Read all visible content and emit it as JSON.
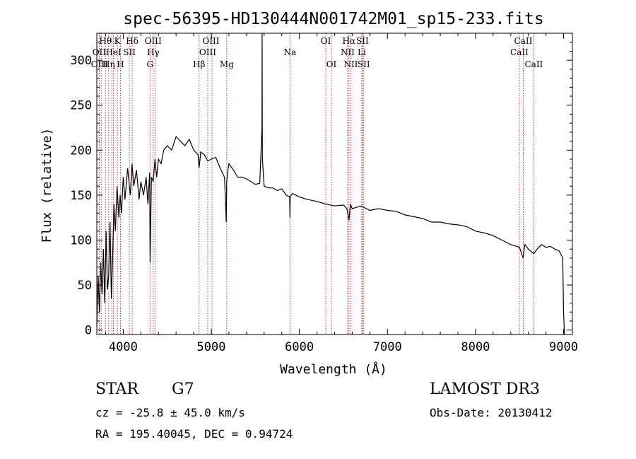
{
  "chart_data": {
    "type": "line",
    "title": "spec-56395-HD130444N001742M01_sp15-233.fits",
    "xlabel": "Wavelength (Å)",
    "ylabel": "Flux (relative)",
    "xlim": [
      3700,
      9100
    ],
    "ylim": [
      -5,
      330
    ],
    "xticks": [
      4000,
      5000,
      6000,
      7000,
      8000,
      9000
    ],
    "xtick_labels": [
      "4000",
      "5000",
      "6000",
      "7000",
      "8000",
      "9000"
    ],
    "yticks": [
      0,
      50,
      100,
      150,
      200,
      250,
      300
    ],
    "ytick_labels": [
      "0",
      "50",
      "100",
      "150",
      "200",
      "250",
      "300"
    ],
    "series": [
      {
        "name": "flux",
        "x": [
          3700,
          3715,
          3730,
          3745,
          3760,
          3775,
          3790,
          3805,
          3820,
          3835,
          3850,
          3865,
          3880,
          3895,
          3910,
          3930,
          3950,
          3965,
          3980,
          4000,
          4020,
          4050,
          4080,
          4100,
          4120,
          4150,
          4180,
          4200,
          4230,
          4260,
          4280,
          4300,
          4305,
          4320,
          4340,
          4360,
          4380,
          4400,
          4430,
          4460,
          4500,
          4550,
          4600,
          4650,
          4700,
          4750,
          4800,
          4850,
          4861,
          4880,
          4920,
          4960,
          5000,
          5050,
          5100,
          5150,
          5170,
          5175,
          5185,
          5200,
          5250,
          5300,
          5350,
          5400,
          5450,
          5500,
          5550,
          5575,
          5577,
          5580,
          5600,
          5650,
          5700,
          5750,
          5800,
          5850,
          5890,
          5893,
          5896,
          5920,
          6000,
          6100,
          6200,
          6300,
          6400,
          6500,
          6540,
          6563,
          6580,
          6600,
          6700,
          6800,
          6900,
          7000,
          7100,
          7200,
          7300,
          7400,
          7500,
          7600,
          7700,
          7800,
          7900,
          8000,
          8100,
          8200,
          8300,
          8400,
          8500,
          8540,
          8560,
          8600,
          8662,
          8700,
          8750,
          8800,
          8850,
          8900,
          8950,
          8990,
          9000,
          9010
        ],
        "y": [
          5,
          60,
          20,
          75,
          40,
          90,
          30,
          110,
          45,
          60,
          120,
          35,
          80,
          140,
          110,
          160,
          125,
          150,
          130,
          170,
          145,
          180,
          150,
          185,
          160,
          178,
          145,
          165,
          150,
          170,
          140,
          175,
          75,
          170,
          165,
          190,
          170,
          190,
          185,
          200,
          205,
          200,
          215,
          210,
          205,
          212,
          200,
          195,
          180,
          198,
          195,
          188,
          190,
          192,
          180,
          170,
          120,
          165,
          175,
          185,
          178,
          170,
          170,
          168,
          165,
          162,
          163,
          225,
          330,
          190,
          160,
          158,
          158,
          155,
          157,
          150,
          148,
          125,
          148,
          152,
          148,
          145,
          143,
          140,
          138,
          139,
          135,
          122,
          140,
          135,
          138,
          133,
          135,
          133,
          132,
          128,
          126,
          124,
          120,
          120,
          118,
          117,
          115,
          110,
          108,
          105,
          100,
          95,
          92,
          80,
          95,
          90,
          85,
          90,
          95,
          92,
          93,
          90,
          88,
          80,
          20,
          -5
        ]
      }
    ],
    "line_annotations": [
      {
        "label": "Hθ",
        "x": 3798,
        "row": 1
      },
      {
        "label": "OII",
        "x": 3727,
        "row": 2
      },
      {
        "label": "OIII",
        "x": 3730,
        "row": 3
      },
      {
        "label": "Hη",
        "x": 3835,
        "row": 3
      },
      {
        "label": "HeI",
        "x": 3889,
        "row": 2
      },
      {
        "label": "K",
        "x": 3934,
        "row": 1
      },
      {
        "label": "H",
        "x": 3969,
        "row": 3
      },
      {
        "label": "SII",
        "x": 4070,
        "row": 2
      },
      {
        "label": "Hδ",
        "x": 4102,
        "row": 1
      },
      {
        "label": "OIII",
        "x": 4340,
        "row": 1
      },
      {
        "label": "Hγ",
        "x": 4341,
        "row": 2
      },
      {
        "label": "G",
        "x": 4304,
        "row": 3
      },
      {
        "label": "Hβ",
        "x": 4861,
        "row": 3
      },
      {
        "label": "OIII",
        "x": 4995,
        "row": 1
      },
      {
        "label": "OIII",
        "x": 4959,
        "row": 2
      },
      {
        "label": "Mg",
        "x": 5175,
        "row": 3
      },
      {
        "label": "Na",
        "x": 5893,
        "row": 2
      },
      {
        "label": "OI",
        "x": 6300,
        "row": 1
      },
      {
        "label": "OI",
        "x": 6364,
        "row": 3
      },
      {
        "label": "Hα",
        "x": 6563,
        "row": 1
      },
      {
        "label": "SII",
        "x": 6716,
        "row": 1
      },
      {
        "label": "NII",
        "x": 6548,
        "row": 2
      },
      {
        "label": "Li",
        "x": 6708,
        "row": 2
      },
      {
        "label": "NII",
        "x": 6584,
        "row": 3
      },
      {
        "label": "SII",
        "x": 6731,
        "row": 3
      },
      {
        "label": "CaII",
        "x": 8542,
        "row": 1
      },
      {
        "label": "CaII",
        "x": 8498,
        "row": 2
      },
      {
        "label": "CaII",
        "x": 8662,
        "row": 3
      }
    ],
    "line_positions": [
      3727,
      3750,
      3798,
      3835,
      3870,
      3889,
      3934,
      3969,
      4070,
      4102,
      4304,
      4340,
      4361,
      4861,
      4959,
      5007,
      5175,
      5893,
      6300,
      6364,
      6548,
      6563,
      6584,
      6708,
      6716,
      6731,
      8498,
      8542,
      8662
    ],
    "colors": {
      "line": "#000000",
      "marker": "#cc0000",
      "frame": "#000000"
    }
  },
  "info": {
    "object_class": "STAR",
    "subclass": "G7",
    "survey": "LAMOST DR3",
    "redshift": "cz = -25.8 ± 45.0 km/s",
    "obs_date": "Obs-Date: 20130412",
    "coords": "RA = 195.40045, DEC =   0.94724"
  }
}
